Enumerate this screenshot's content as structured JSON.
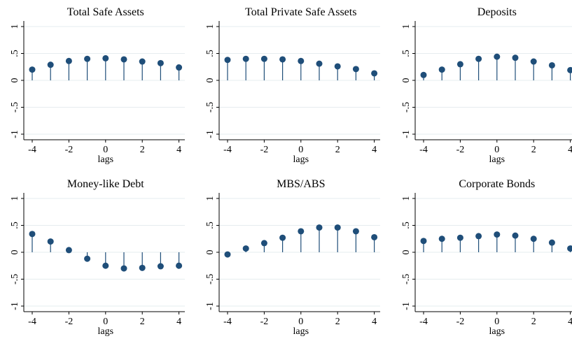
{
  "figure": {
    "background": "#ffffff",
    "grid_color": "#e6ecef",
    "marker_color": "#1f4e79"
  },
  "chart_data": [
    {
      "type": "scatter",
      "style": "dropline",
      "title": "Total Safe Assets",
      "xlabel": "lags",
      "ylabel": "",
      "xlim": [
        -4,
        4
      ],
      "ylim": [
        -1,
        1
      ],
      "grid": true,
      "x": [
        -4,
        -3,
        -2,
        -1,
        0,
        1,
        2,
        3,
        4
      ],
      "values": [
        0.2,
        0.29,
        0.36,
        0.4,
        0.41,
        0.39,
        0.35,
        0.32,
        0.24
      ]
    },
    {
      "type": "scatter",
      "style": "dropline",
      "title": "Total Private Safe Assets",
      "xlabel": "lags",
      "ylabel": "",
      "xlim": [
        -4,
        4
      ],
      "ylim": [
        -1,
        1
      ],
      "grid": true,
      "x": [
        -4,
        -3,
        -2,
        -1,
        0,
        1,
        2,
        3,
        4
      ],
      "values": [
        0.38,
        0.4,
        0.4,
        0.39,
        0.36,
        0.31,
        0.26,
        0.21,
        0.13
      ]
    },
    {
      "type": "scatter",
      "style": "dropline",
      "title": "Deposits",
      "xlabel": "lags",
      "ylabel": "",
      "xlim": [
        -4,
        4
      ],
      "ylim": [
        -1,
        1
      ],
      "grid": true,
      "x": [
        -4,
        -3,
        -2,
        -1,
        0,
        1,
        2,
        3,
        4
      ],
      "values": [
        0.1,
        0.2,
        0.3,
        0.4,
        0.44,
        0.42,
        0.35,
        0.28,
        0.19
      ]
    },
    {
      "type": "scatter",
      "style": "dropline",
      "title": "Money-like Debt",
      "xlabel": "lags",
      "ylabel": "",
      "xlim": [
        -4,
        4
      ],
      "ylim": [
        -1,
        1
      ],
      "grid": true,
      "x": [
        -4,
        -3,
        -2,
        -1,
        0,
        1,
        2,
        3,
        4
      ],
      "values": [
        0.34,
        0.2,
        0.04,
        -0.12,
        -0.25,
        -0.3,
        -0.29,
        -0.26,
        -0.25
      ]
    },
    {
      "type": "scatter",
      "style": "dropline",
      "title": "MBS/ABS",
      "xlabel": "lags",
      "ylabel": "",
      "xlim": [
        -4,
        4
      ],
      "ylim": [
        -1,
        1
      ],
      "grid": true,
      "x": [
        -4,
        -3,
        -2,
        -1,
        0,
        1,
        2,
        3,
        4
      ],
      "values": [
        -0.04,
        0.07,
        0.17,
        0.27,
        0.39,
        0.46,
        0.46,
        0.39,
        0.28
      ]
    },
    {
      "type": "scatter",
      "style": "dropline",
      "title": "Corporate Bonds",
      "xlabel": "lags",
      "ylabel": "",
      "xlim": [
        -4,
        4
      ],
      "ylim": [
        -1,
        1
      ],
      "grid": true,
      "x": [
        -4,
        -3,
        -2,
        -1,
        0,
        1,
        2,
        3,
        4
      ],
      "values": [
        0.21,
        0.25,
        0.27,
        0.3,
        0.33,
        0.31,
        0.25,
        0.18,
        0.07
      ]
    }
  ],
  "tick_labels": {
    "x": [
      "-4",
      "-2",
      "0",
      "2",
      "4"
    ],
    "y": [
      "-1",
      "-.5",
      "0",
      ".5",
      "1"
    ]
  }
}
